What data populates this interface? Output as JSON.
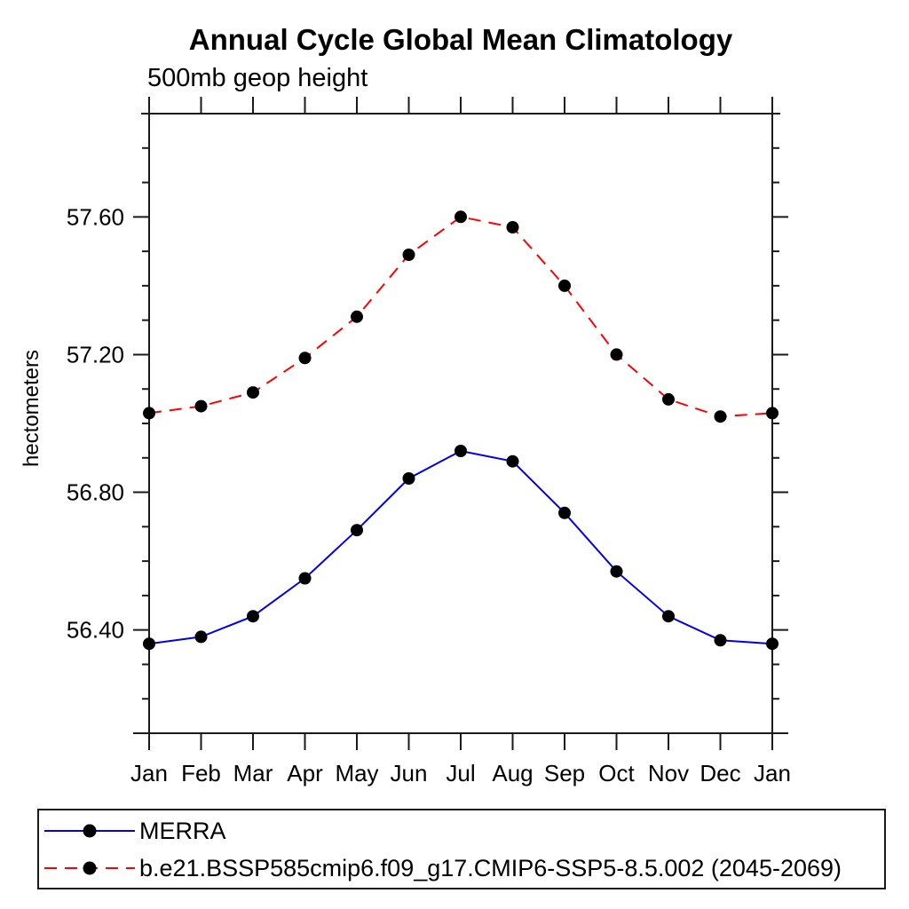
{
  "page": {
    "background": "#ffffff"
  },
  "chart_data": {
    "type": "line",
    "title": "Annual Cycle Global Mean Climatology",
    "subtitle": "500mb geop height",
    "ylabel": "hectometers",
    "xlabel": "",
    "categories": [
      "Jan",
      "Feb",
      "Mar",
      "Apr",
      "May",
      "Jun",
      "Jul",
      "Aug",
      "Sep",
      "Oct",
      "Nov",
      "Dec",
      "Jan"
    ],
    "ylim": [
      56.1,
      57.9
    ],
    "ytick_major": [
      56.4,
      56.8,
      57.2,
      57.6
    ],
    "ytick_minor_step": 0.1,
    "grid": false,
    "legend_position": "bottom",
    "axis_color": "#1a1a1a",
    "series": [
      {
        "name": "MERRA",
        "color": "#0000ee",
        "dash": "solid",
        "marker": "circle",
        "marker_color": "#000000",
        "values": [
          56.36,
          56.38,
          56.44,
          56.55,
          56.69,
          56.84,
          56.92,
          56.89,
          56.74,
          56.57,
          56.44,
          56.37,
          56.36
        ]
      },
      {
        "name": "b.e21.BSSP585cmip6.f09_g17.CMIP6-SSP5-8.5.002 (2045-2069)",
        "color": "#ff0000",
        "dash": "dashed",
        "marker": "circle",
        "marker_color": "#000000",
        "values": [
          57.03,
          57.05,
          57.09,
          57.19,
          57.31,
          57.49,
          57.6,
          57.57,
          57.4,
          57.2,
          57.07,
          57.02,
          57.03
        ]
      }
    ]
  }
}
